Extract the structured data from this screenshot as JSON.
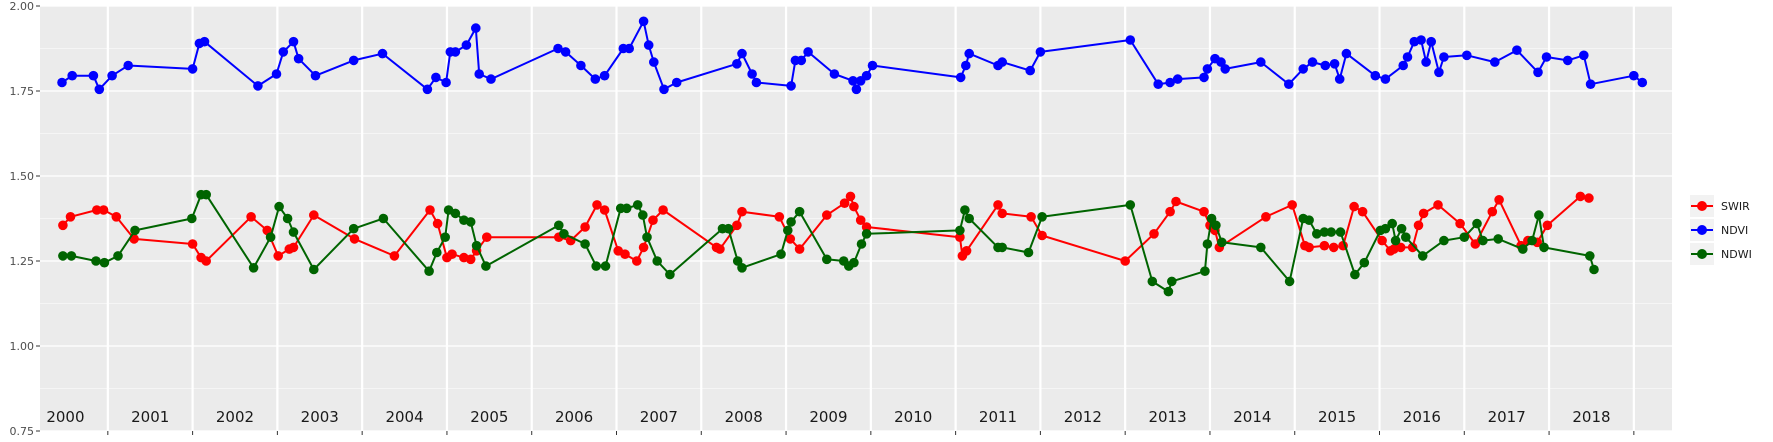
{
  "chart_data": {
    "type": "line",
    "title": "",
    "xlabel": "",
    "ylabel": "",
    "xlim": [
      1999.7,
      2018.95
    ],
    "ylim": [
      0.75,
      2.0
    ],
    "yticks": [
      0.75,
      1.0,
      1.25,
      1.5,
      1.75,
      2.0
    ],
    "ytick_labels": [
      "0.75",
      "1.00",
      "1.25",
      "1.50",
      "1.75",
      "2.00"
    ],
    "year_labels": [
      "2000",
      "2001",
      "2002",
      "2003",
      "2004",
      "2005",
      "2006",
      "2007",
      "2008",
      "2009",
      "2010",
      "2011",
      "2012",
      "2013",
      "2014",
      "2015",
      "2016",
      "2017",
      "2018"
    ],
    "grid": true,
    "legend_position": "right",
    "colors": {
      "panel_bg": "#ebebeb",
      "grid": "#ffffff",
      "SWIR": "#ff0000",
      "NDVI": "#0000ff",
      "NDWI": "#006400"
    },
    "series": [
      {
        "name": "SWIR",
        "color": "#ff0000",
        "points": [
          [
            1999.97,
            1.355
          ],
          [
            2000.06,
            1.38
          ],
          [
            2000.37,
            1.4
          ],
          [
            2000.45,
            1.4
          ],
          [
            2000.6,
            1.38
          ],
          [
            2000.81,
            1.315
          ],
          [
            2001.5,
            1.3
          ],
          [
            2001.6,
            1.26
          ],
          [
            2001.66,
            1.25
          ],
          [
            2002.19,
            1.38
          ],
          [
            2002.38,
            1.34
          ],
          [
            2002.51,
            1.265
          ],
          [
            2002.64,
            1.285
          ],
          [
            2002.69,
            1.29
          ],
          [
            2002.93,
            1.385
          ],
          [
            2003.41,
            1.315
          ],
          [
            2003.88,
            1.265
          ],
          [
            2004.3,
            1.4
          ],
          [
            2004.39,
            1.36
          ],
          [
            2004.5,
            1.26
          ],
          [
            2004.56,
            1.27
          ],
          [
            2004.7,
            1.26
          ],
          [
            2004.78,
            1.255
          ],
          [
            2004.85,
            1.28
          ],
          [
            2004.97,
            1.32
          ],
          [
            2005.82,
            1.32
          ],
          [
            2005.96,
            1.31
          ],
          [
            2006.13,
            1.35
          ],
          [
            2006.27,
            1.415
          ],
          [
            2006.36,
            1.4
          ],
          [
            2006.52,
            1.28
          ],
          [
            2006.6,
            1.27
          ],
          [
            2006.74,
            1.25
          ],
          [
            2006.82,
            1.29
          ],
          [
            2006.93,
            1.37
          ],
          [
            2007.05,
            1.4
          ],
          [
            2007.68,
            1.29
          ],
          [
            2007.72,
            1.285
          ],
          [
            2007.92,
            1.355
          ],
          [
            2007.98,
            1.395
          ],
          [
            2008.42,
            1.38
          ],
          [
            2008.55,
            1.315
          ],
          [
            2008.66,
            1.285
          ],
          [
            2008.98,
            1.385
          ],
          [
            2009.19,
            1.42
          ],
          [
            2009.26,
            1.44
          ],
          [
            2009.3,
            1.41
          ],
          [
            2009.38,
            1.37
          ],
          [
            2009.45,
            1.35
          ],
          [
            2010.55,
            1.32
          ],
          [
            2010.58,
            1.265
          ],
          [
            2010.63,
            1.28
          ],
          [
            2011.0,
            1.415
          ],
          [
            2011.05,
            1.39
          ],
          [
            2011.39,
            1.38
          ],
          [
            2011.52,
            1.325
          ],
          [
            2012.5,
            1.25
          ],
          [
            2012.84,
            1.33
          ],
          [
            2013.03,
            1.395
          ],
          [
            2013.1,
            1.425
          ],
          [
            2013.43,
            1.395
          ],
          [
            2013.5,
            1.355
          ],
          [
            2013.56,
            1.34
          ],
          [
            2013.61,
            1.29
          ],
          [
            2014.16,
            1.38
          ],
          [
            2014.47,
            1.415
          ],
          [
            2014.62,
            1.295
          ],
          [
            2014.67,
            1.29
          ],
          [
            2014.85,
            1.295
          ],
          [
            2014.96,
            1.29
          ],
          [
            2015.07,
            1.295
          ],
          [
            2015.2,
            1.41
          ],
          [
            2015.3,
            1.395
          ],
          [
            2015.53,
            1.31
          ],
          [
            2015.63,
            1.28
          ],
          [
            2015.67,
            1.285
          ],
          [
            2015.75,
            1.29
          ],
          [
            2015.89,
            1.29
          ],
          [
            2015.96,
            1.355
          ],
          [
            2016.02,
            1.39
          ],
          [
            2016.19,
            1.415
          ],
          [
            2016.45,
            1.36
          ],
          [
            2016.63,
            1.3
          ],
          [
            2016.83,
            1.395
          ],
          [
            2016.91,
            1.43
          ],
          [
            2017.17,
            1.295
          ],
          [
            2017.25,
            1.31
          ],
          [
            2017.36,
            1.305
          ],
          [
            2017.48,
            1.355
          ],
          [
            2017.87,
            1.44
          ],
          [
            2017.97,
            1.435
          ]
        ]
      },
      {
        "name": "NDVI",
        "color": "#0000ff",
        "points": [
          [
            1999.96,
            1.775
          ],
          [
            2000.08,
            1.795
          ],
          [
            2000.33,
            1.795
          ],
          [
            2000.4,
            1.755
          ],
          [
            2000.55,
            1.795
          ],
          [
            2000.74,
            1.825
          ],
          [
            2001.5,
            1.815
          ],
          [
            2001.58,
            1.89
          ],
          [
            2001.64,
            1.895
          ],
          [
            2002.27,
            1.765
          ],
          [
            2002.49,
            1.8
          ],
          [
            2002.57,
            1.865
          ],
          [
            2002.69,
            1.895
          ],
          [
            2002.75,
            1.845
          ],
          [
            2002.95,
            1.795
          ],
          [
            2003.4,
            1.84
          ],
          [
            2003.74,
            1.86
          ],
          [
            2004.27,
            1.755
          ],
          [
            2004.37,
            1.79
          ],
          [
            2004.49,
            1.775
          ],
          [
            2004.54,
            1.865
          ],
          [
            2004.6,
            1.865
          ],
          [
            2004.73,
            1.885
          ],
          [
            2004.84,
            1.935
          ],
          [
            2004.88,
            1.8
          ],
          [
            2005.02,
            1.785
          ],
          [
            2005.81,
            1.875
          ],
          [
            2005.9,
            1.865
          ],
          [
            2006.08,
            1.825
          ],
          [
            2006.25,
            1.785
          ],
          [
            2006.36,
            1.795
          ],
          [
            2006.58,
            1.875
          ],
          [
            2006.65,
            1.875
          ],
          [
            2006.82,
            1.955
          ],
          [
            2006.88,
            1.885
          ],
          [
            2006.94,
            1.835
          ],
          [
            2007.06,
            1.755
          ],
          [
            2007.21,
            1.775
          ],
          [
            2007.92,
            1.83
          ],
          [
            2007.98,
            1.86
          ],
          [
            2008.1,
            1.8
          ],
          [
            2008.15,
            1.775
          ],
          [
            2008.56,
            1.765
          ],
          [
            2008.61,
            1.84
          ],
          [
            2008.68,
            1.84
          ],
          [
            2008.76,
            1.865
          ],
          [
            2009.07,
            1.8
          ],
          [
            2009.29,
            1.78
          ],
          [
            2009.33,
            1.755
          ],
          [
            2009.38,
            1.78
          ],
          [
            2009.45,
            1.795
          ],
          [
            2009.52,
            1.825
          ],
          [
            2010.56,
            1.79
          ],
          [
            2010.62,
            1.825
          ],
          [
            2010.66,
            1.86
          ],
          [
            2011.0,
            1.825
          ],
          [
            2011.05,
            1.835
          ],
          [
            2011.38,
            1.81
          ],
          [
            2011.5,
            1.865
          ],
          [
            2012.56,
            1.9
          ],
          [
            2012.89,
            1.77
          ],
          [
            2013.03,
            1.775
          ],
          [
            2013.12,
            1.785
          ],
          [
            2013.43,
            1.79
          ],
          [
            2013.47,
            1.815
          ],
          [
            2013.56,
            1.845
          ],
          [
            2013.63,
            1.835
          ],
          [
            2013.68,
            1.815
          ],
          [
            2014.1,
            1.835
          ],
          [
            2014.43,
            1.77
          ],
          [
            2014.6,
            1.815
          ],
          [
            2014.71,
            1.835
          ],
          [
            2014.86,
            1.825
          ],
          [
            2014.97,
            1.83
          ],
          [
            2015.03,
            1.785
          ],
          [
            2015.11,
            1.86
          ],
          [
            2015.45,
            1.795
          ],
          [
            2015.57,
            1.785
          ],
          [
            2015.78,
            1.825
          ],
          [
            2015.83,
            1.85
          ],
          [
            2015.91,
            1.895
          ],
          [
            2015.99,
            1.9
          ],
          [
            2016.05,
            1.835
          ],
          [
            2016.11,
            1.895
          ],
          [
            2016.2,
            1.805
          ],
          [
            2016.26,
            1.85
          ],
          [
            2016.53,
            1.855
          ],
          [
            2016.86,
            1.835
          ],
          [
            2017.12,
            1.87
          ],
          [
            2017.37,
            1.805
          ],
          [
            2017.47,
            1.85
          ],
          [
            2017.72,
            1.84
          ],
          [
            2017.91,
            1.855
          ],
          [
            2017.99,
            1.77
          ],
          [
            2018.5,
            1.795
          ],
          [
            2018.6,
            1.775
          ]
        ]
      },
      {
        "name": "NDWI",
        "color": "#006400",
        "points": [
          [
            1999.97,
            1.265
          ],
          [
            2000.07,
            1.265
          ],
          [
            2000.36,
            1.25
          ],
          [
            2000.46,
            1.245
          ],
          [
            2000.62,
            1.265
          ],
          [
            2000.82,
            1.34
          ],
          [
            2001.49,
            1.375
          ],
          [
            2001.6,
            1.445
          ],
          [
            2001.66,
            1.445
          ],
          [
            2002.22,
            1.23
          ],
          [
            2002.42,
            1.32
          ],
          [
            2002.52,
            1.41
          ],
          [
            2002.62,
            1.375
          ],
          [
            2002.69,
            1.335
          ],
          [
            2002.93,
            1.225
          ],
          [
            2003.4,
            1.345
          ],
          [
            2003.75,
            1.375
          ],
          [
            2004.29,
            1.22
          ],
          [
            2004.38,
            1.275
          ],
          [
            2004.48,
            1.32
          ],
          [
            2004.52,
            1.4
          ],
          [
            2004.6,
            1.39
          ],
          [
            2004.7,
            1.37
          ],
          [
            2004.78,
            1.365
          ],
          [
            2004.85,
            1.295
          ],
          [
            2004.96,
            1.235
          ],
          [
            2005.82,
            1.355
          ],
          [
            2005.88,
            1.33
          ],
          [
            2006.13,
            1.3
          ],
          [
            2006.26,
            1.235
          ],
          [
            2006.37,
            1.235
          ],
          [
            2006.55,
            1.405
          ],
          [
            2006.62,
            1.405
          ],
          [
            2006.75,
            1.415
          ],
          [
            2006.81,
            1.385
          ],
          [
            2006.86,
            1.32
          ],
          [
            2006.98,
            1.25
          ],
          [
            2007.13,
            1.21
          ],
          [
            2007.75,
            1.345
          ],
          [
            2007.82,
            1.345
          ],
          [
            2007.93,
            1.25
          ],
          [
            2007.98,
            1.23
          ],
          [
            2008.44,
            1.27
          ],
          [
            2008.52,
            1.34
          ],
          [
            2008.56,
            1.365
          ],
          [
            2008.66,
            1.395
          ],
          [
            2008.98,
            1.255
          ],
          [
            2009.18,
            1.25
          ],
          [
            2009.24,
            1.235
          ],
          [
            2009.3,
            1.245
          ],
          [
            2009.39,
            1.3
          ],
          [
            2009.45,
            1.33
          ],
          [
            2010.55,
            1.34
          ],
          [
            2010.61,
            1.4
          ],
          [
            2010.66,
            1.375
          ],
          [
            2011.0,
            1.29
          ],
          [
            2011.05,
            1.29
          ],
          [
            2011.36,
            1.275
          ],
          [
            2011.52,
            1.38
          ],
          [
            2012.56,
            1.415
          ],
          [
            2012.82,
            1.19
          ],
          [
            2013.01,
            1.16
          ],
          [
            2013.05,
            1.19
          ],
          [
            2013.44,
            1.22
          ],
          [
            2013.47,
            1.3
          ],
          [
            2013.52,
            1.375
          ],
          [
            2013.57,
            1.355
          ],
          [
            2013.64,
            1.305
          ],
          [
            2014.1,
            1.29
          ],
          [
            2014.44,
            1.19
          ],
          [
            2014.6,
            1.375
          ],
          [
            2014.67,
            1.37
          ],
          [
            2014.76,
            1.33
          ],
          [
            2014.85,
            1.335
          ],
          [
            2014.93,
            1.335
          ],
          [
            2015.04,
            1.335
          ],
          [
            2015.21,
            1.21
          ],
          [
            2015.32,
            1.245
          ],
          [
            2015.51,
            1.34
          ],
          [
            2015.57,
            1.345
          ],
          [
            2015.65,
            1.36
          ],
          [
            2015.69,
            1.31
          ],
          [
            2015.76,
            1.345
          ],
          [
            2015.81,
            1.32
          ],
          [
            2016.01,
            1.265
          ],
          [
            2016.26,
            1.31
          ],
          [
            2016.5,
            1.32
          ],
          [
            2016.65,
            1.36
          ],
          [
            2016.72,
            1.31
          ],
          [
            2016.9,
            1.315
          ],
          [
            2017.19,
            1.285
          ],
          [
            2017.3,
            1.31
          ],
          [
            2017.38,
            1.385
          ],
          [
            2017.44,
            1.29
          ],
          [
            2017.98,
            1.265
          ],
          [
            2018.03,
            1.225
          ]
        ]
      }
    ]
  }
}
